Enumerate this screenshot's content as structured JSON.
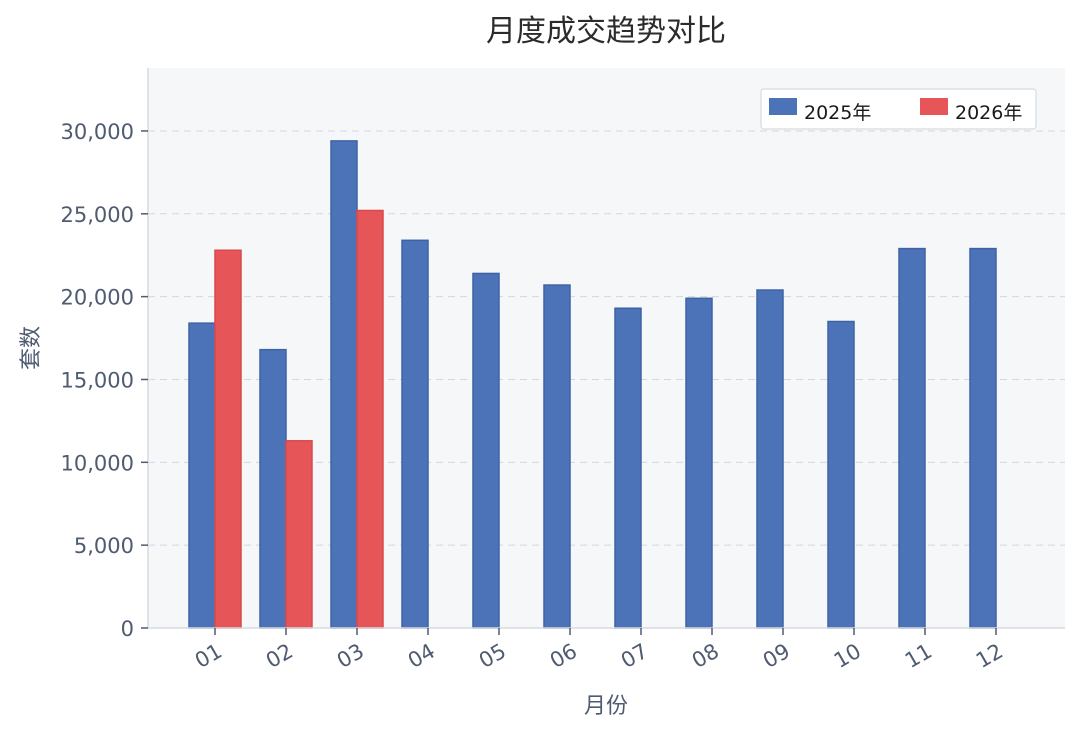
{
  "chart_data": {
    "type": "bar",
    "title": "月度成交趋势对比",
    "xlabel": "月份",
    "ylabel": "套数",
    "categories": [
      "01",
      "02",
      "03",
      "04",
      "05",
      "06",
      "07",
      "08",
      "09",
      "10",
      "11",
      "12"
    ],
    "series": [
      {
        "name": "2025年",
        "color": "#4c72b8",
        "values": [
          18400,
          16800,
          29400,
          23400,
          21400,
          20700,
          19300,
          19900,
          20400,
          18500,
          22900,
          22900
        ]
      },
      {
        "name": "2026年",
        "color": "#e65557",
        "values": [
          22800,
          11300,
          25200,
          null,
          null,
          null,
          null,
          null,
          null,
          null,
          null,
          null
        ]
      }
    ],
    "ylim": [
      0,
      33800
    ],
    "yticks": [
      0,
      5000,
      10000,
      15000,
      20000,
      25000,
      30000
    ],
    "ytick_labels": [
      "0",
      "5,000",
      "10,000",
      "15,000",
      "20,000",
      "25,000",
      "30,000"
    ],
    "grid": "horizontal dashed",
    "legend_position": "top-right",
    "plot_background": "#f5f7f9"
  }
}
